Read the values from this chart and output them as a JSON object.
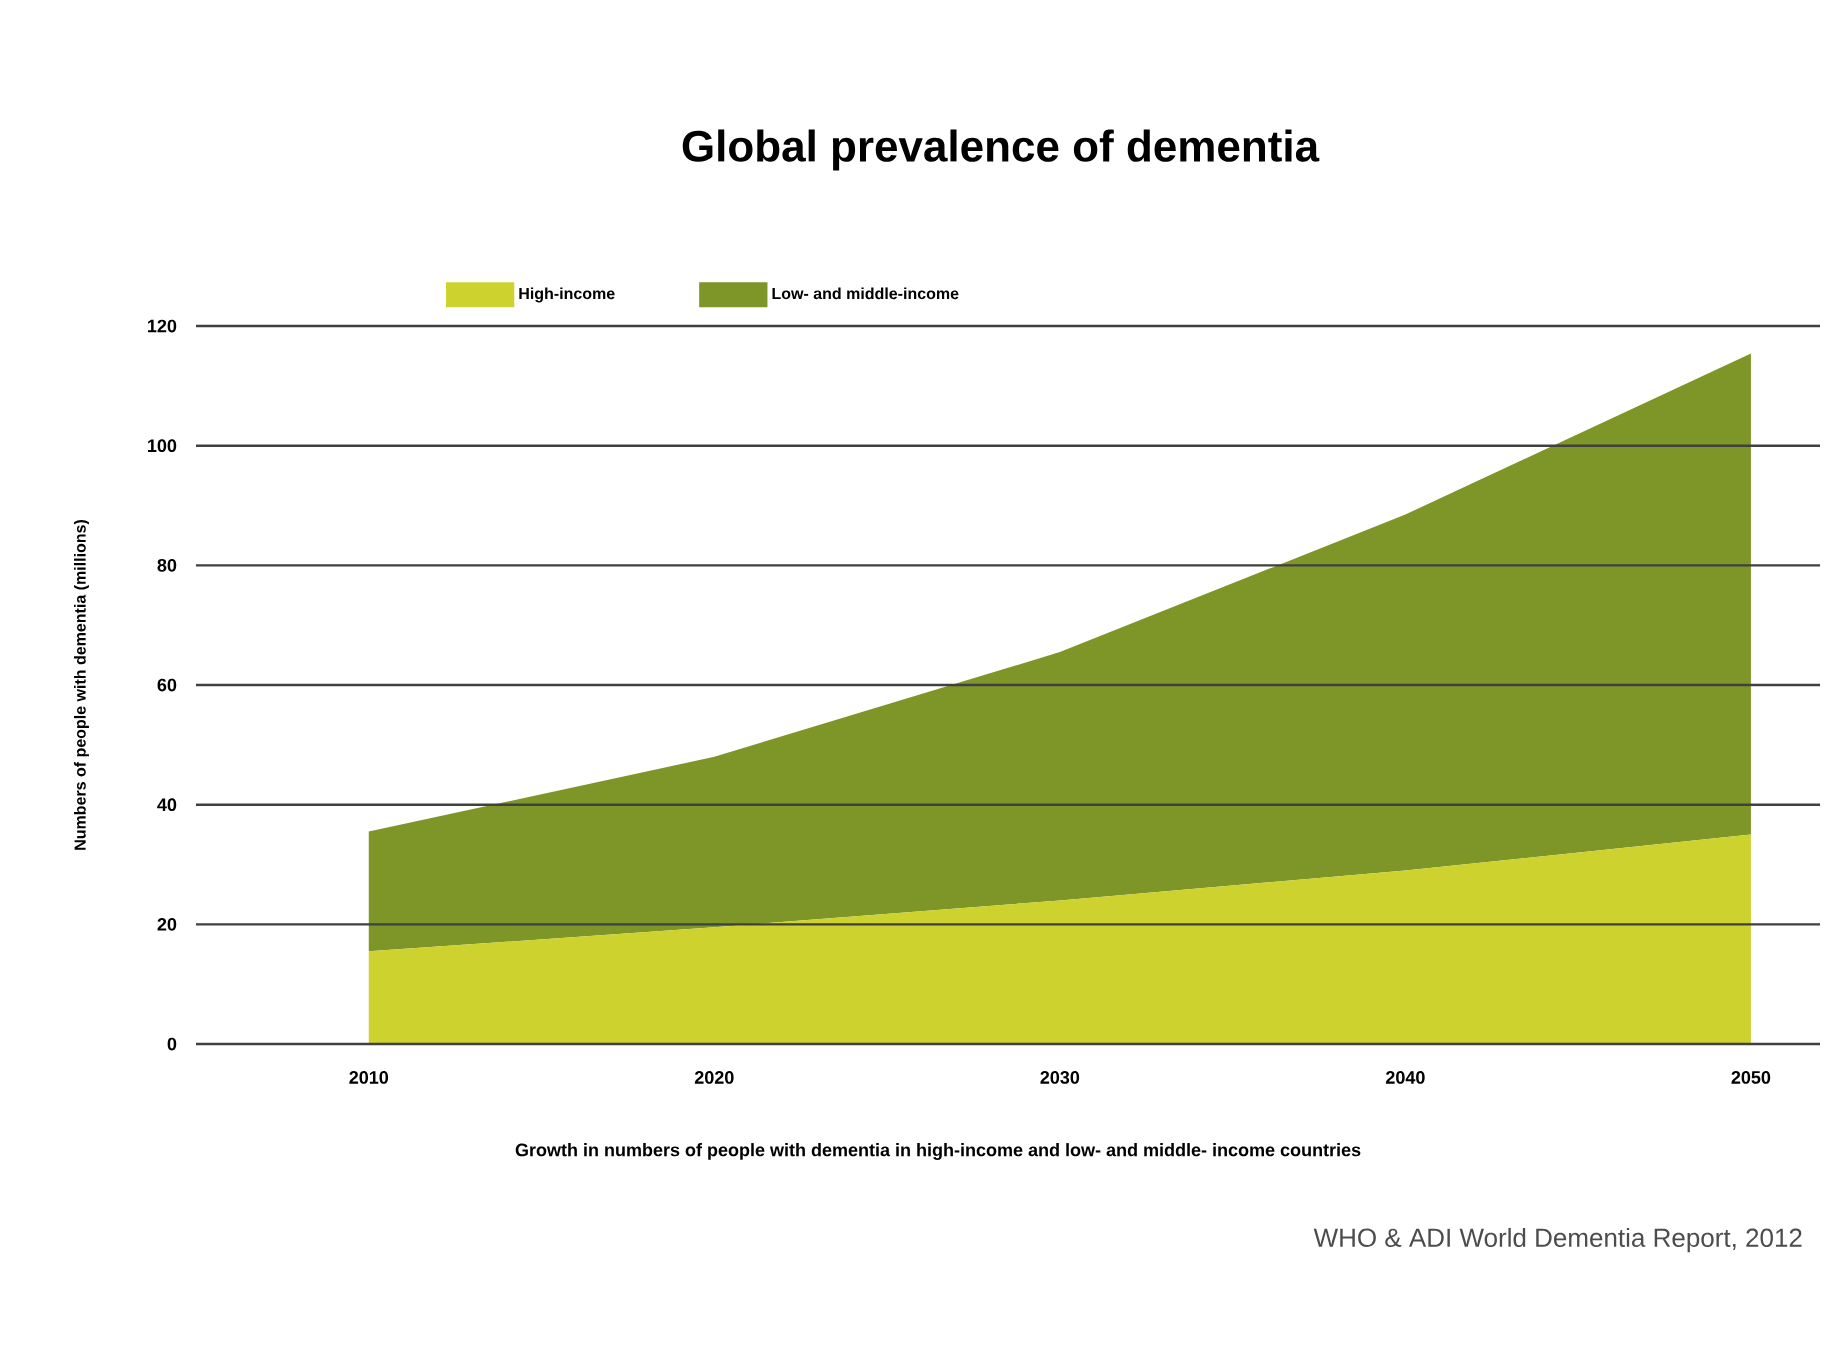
{
  "chart_data": {
    "type": "area",
    "title": "Global prevalence of dementia",
    "xlabel": "Growth in numbers of people with dementia in high-income and low- and middle- income countries",
    "ylabel": "Numbers of people with dementia (millions)",
    "annotations": [
      "WHO & ADI World Dementia Report, 2012"
    ],
    "x": [
      2010,
      2020,
      2030,
      2040,
      2050
    ],
    "series": [
      {
        "name": "High-income",
        "color": "#cdd22f",
        "values": [
          15.5,
          19.5,
          24,
          29,
          35
        ]
      },
      {
        "name": "Low- and middle-income",
        "color": "#7e9528",
        "values": [
          20,
          28.5,
          41.5,
          59.5,
          80.4
        ]
      }
    ],
    "stacked": true,
    "xlim": [
      2005,
      2052
    ],
    "xticks": [
      2010,
      2020,
      2030,
      2040,
      2050
    ],
    "ylim": [
      0,
      120
    ],
    "yticks": [
      0,
      20,
      40,
      60,
      80,
      100,
      120
    ],
    "grid": "y",
    "legend": "top left"
  }
}
